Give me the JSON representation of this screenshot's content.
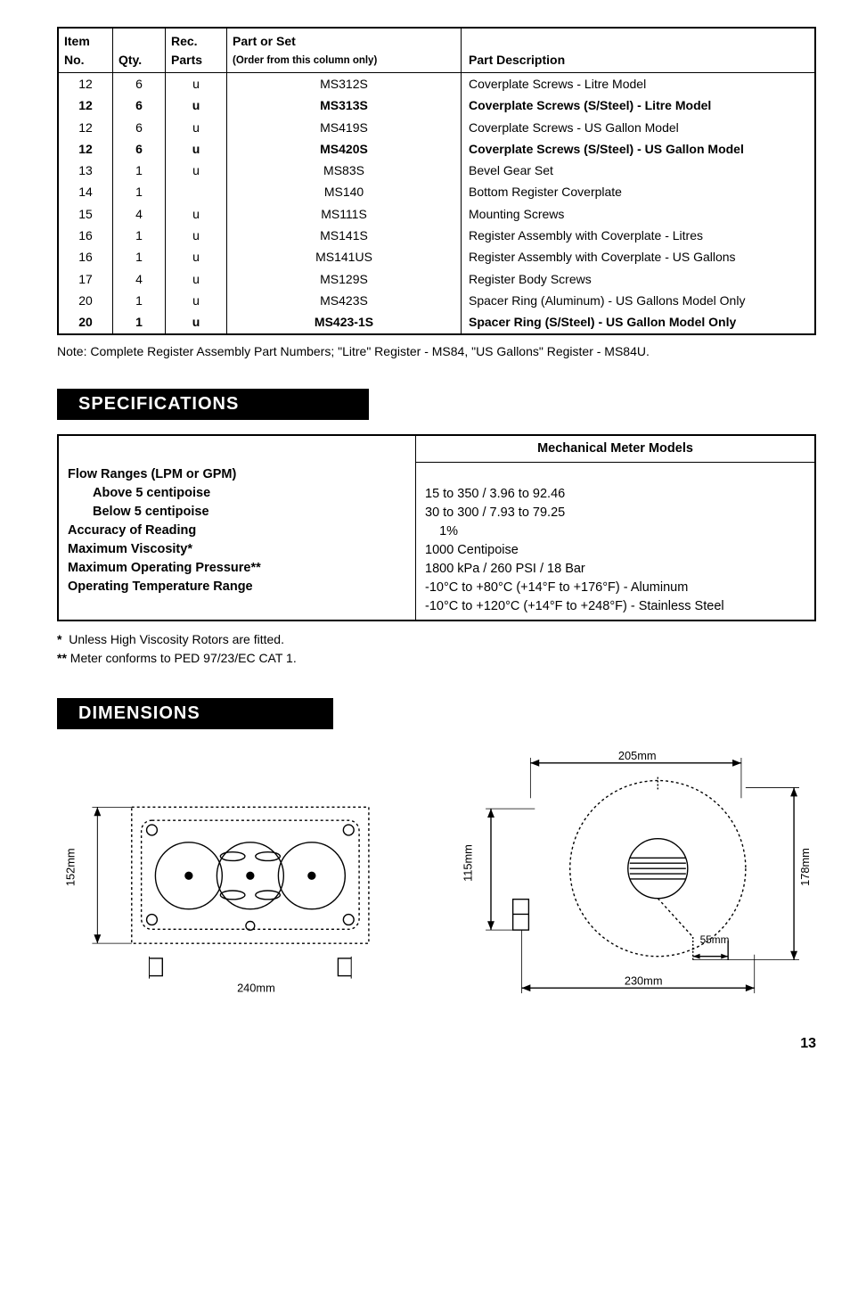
{
  "parts_table": {
    "headers": {
      "item_no": "Item\nNo.",
      "qty": "Qty.",
      "rec_parts": "Rec.\nParts",
      "part_or_set": "Part or Set",
      "part_or_set_sub": "(Order from this column only)",
      "desc": "Part Description"
    },
    "rows": [
      {
        "no": "12",
        "qty": "6",
        "rec": "u",
        "part": "MS312S",
        "desc": "Coverplate Screws - Litre Model",
        "bold": false
      },
      {
        "no": "12",
        "qty": "6",
        "rec": "u",
        "part": "MS313S",
        "desc": "Coverplate Screws (S/Steel) - Litre Model",
        "bold": true
      },
      {
        "no": "12",
        "qty": "6",
        "rec": "u",
        "part": "MS419S",
        "desc": "Coverplate Screws - US Gallon Model",
        "bold": false
      },
      {
        "no": "12",
        "qty": "6",
        "rec": "u",
        "part": "MS420S",
        "desc": "Coverplate Screws (S/Steel) - US Gallon Model",
        "bold": true
      },
      {
        "no": "13",
        "qty": "1",
        "rec": "u",
        "part": "MS83S",
        "desc": "Bevel Gear Set",
        "bold": false
      },
      {
        "no": "14",
        "qty": "1",
        "rec": "",
        "part": "MS140",
        "desc": "Bottom Register Coverplate",
        "bold": false
      },
      {
        "no": "15",
        "qty": "4",
        "rec": "u",
        "part": "MS111S",
        "desc": "Mounting Screws",
        "bold": false
      },
      {
        "no": "16",
        "qty": "1",
        "rec": "u",
        "part": "MS141S",
        "desc": "Register Assembly with Coverplate - Litres",
        "bold": false
      },
      {
        "no": "16",
        "qty": "1",
        "rec": "u",
        "part": "MS141US",
        "desc": "Register Assembly with Coverplate - US Gallons",
        "bold": false
      },
      {
        "no": "17",
        "qty": "4",
        "rec": "u",
        "part": "MS129S",
        "desc": "Register Body Screws",
        "bold": false
      },
      {
        "no": "20",
        "qty": "1",
        "rec": "u",
        "part": "MS423S",
        "desc": "Spacer Ring (Aluminum) - US Gallons Model Only",
        "bold": false
      },
      {
        "no": "20",
        "qty": "1",
        "rec": "u",
        "part": "MS423-1S",
        "desc": "Spacer Ring (S/Steel) - US Gallon Model Only",
        "bold": true
      }
    ]
  },
  "note": "Note:  Complete Register Assembly Part Numbers; \"Litre\" Register - MS84, \"US Gallons\" Register - MS84U.",
  "sections": {
    "specifications": "SPECIFICATIONS",
    "dimensions": "DIMENSIONS"
  },
  "specs": {
    "header_right": "Mechanical Meter Models",
    "rows": [
      {
        "label": "Flow Ranges (LPM or GPM)",
        "value": "",
        "bold": true,
        "indent": false
      },
      {
        "label": "Above 5 centipoise",
        "value": "15 to 350 / 3.96 to 92.46",
        "bold": true,
        "indent": true
      },
      {
        "label": "Below 5 centipoise",
        "value": "30 to 300 / 7.93 to 79.25",
        "bold": true,
        "indent": true
      },
      {
        "label": "Accuracy of Reading",
        "value": "   1%",
        "bold": true,
        "indent": false
      },
      {
        "label": "Maximum Viscosity*",
        "value": "1000 Centipoise",
        "bold": true,
        "indent": false
      },
      {
        "label": "Maximum Operating Pressure**",
        "value": "1800 kPa / 260 PSI / 18 Bar",
        "bold": true,
        "indent": false
      },
      {
        "label": "Operating Temperature Range",
        "value": "-10°C to +80°C (+14°F to +176°F) - Aluminum",
        "bold": true,
        "indent": false
      },
      {
        "label": "",
        "value": "-10°C to +120°C (+14°F to +248°F) - Stainless Steel",
        "bold": false,
        "indent": false
      }
    ]
  },
  "footnotes": {
    "star": "*   Unless High Viscosity Rotors are fitted.",
    "dstar": "** Meter conforms to PED 97/23/EC CAT 1."
  },
  "dimensions": {
    "left": {
      "w_label": "240mm",
      "h_label": "152mm"
    },
    "right": {
      "top_label": "205mm",
      "h_label": "115mm",
      "r_label": "178mm",
      "small_label": "55mm",
      "bottom_label": "230mm"
    }
  },
  "page_number": "13",
  "colors": {
    "black": "#000000",
    "white": "#ffffff",
    "dash": "#000000"
  }
}
